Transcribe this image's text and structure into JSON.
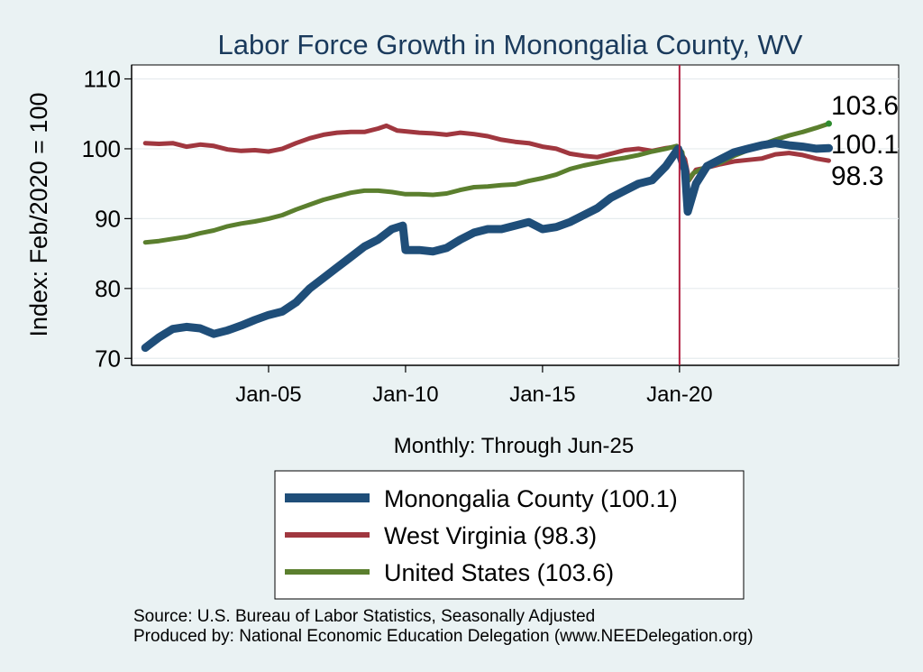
{
  "chart_data": {
    "type": "line",
    "title": "Labor Force Growth in Monongalia  County, WV",
    "ylabel": "Index: Feb/2020 = 100",
    "xlabel": "Monthly: Through Jun-25",
    "ylim": [
      69,
      112
    ],
    "yticks": [
      70,
      80,
      90,
      100,
      110
    ],
    "xrange": [
      2000.0,
      2028.0
    ],
    "xticks": [
      {
        "x": 2005.0,
        "label": "Jan-05"
      },
      {
        "x": 2010.0,
        "label": "Jan-10"
      },
      {
        "x": 2015.0,
        "label": "Jan-15"
      },
      {
        "x": 2020.0,
        "label": "Jan-20"
      }
    ],
    "reference_line_x": 2020.0,
    "grid": true,
    "series": [
      {
        "name": "Monongalia  County",
        "legend": "Monongalia  County (100.1)",
        "end_label": "100.1",
        "color": "#1f4e79",
        "points": [
          [
            2000.5,
            71.5
          ],
          [
            2001.0,
            73.0
          ],
          [
            2001.5,
            74.2
          ],
          [
            2002.0,
            74.5
          ],
          [
            2002.5,
            74.3
          ],
          [
            2003.0,
            73.5
          ],
          [
            2003.5,
            74.0
          ],
          [
            2004.0,
            74.7
          ],
          [
            2004.5,
            75.5
          ],
          [
            2005.0,
            76.2
          ],
          [
            2005.5,
            76.7
          ],
          [
            2006.0,
            78.0
          ],
          [
            2006.5,
            80.0
          ],
          [
            2007.0,
            81.5
          ],
          [
            2007.5,
            83.0
          ],
          [
            2008.0,
            84.5
          ],
          [
            2008.5,
            86.0
          ],
          [
            2009.0,
            87.0
          ],
          [
            2009.5,
            88.5
          ],
          [
            2009.9,
            89.0
          ],
          [
            2010.0,
            85.5
          ],
          [
            2010.5,
            85.5
          ],
          [
            2011.0,
            85.3
          ],
          [
            2011.5,
            85.8
          ],
          [
            2012.0,
            87.0
          ],
          [
            2012.5,
            88.0
          ],
          [
            2013.0,
            88.5
          ],
          [
            2013.5,
            88.5
          ],
          [
            2014.0,
            89.0
          ],
          [
            2014.5,
            89.5
          ],
          [
            2015.0,
            88.5
          ],
          [
            2015.5,
            88.8
          ],
          [
            2016.0,
            89.5
          ],
          [
            2016.5,
            90.5
          ],
          [
            2017.0,
            91.5
          ],
          [
            2017.5,
            93.0
          ],
          [
            2018.0,
            94.0
          ],
          [
            2018.5,
            95.0
          ],
          [
            2019.0,
            95.5
          ],
          [
            2019.5,
            97.5
          ],
          [
            2019.95,
            100.0
          ],
          [
            2020.2,
            97.0
          ],
          [
            2020.3,
            91.0
          ],
          [
            2020.6,
            95.0
          ],
          [
            2021.0,
            97.5
          ],
          [
            2021.5,
            98.5
          ],
          [
            2022.0,
            99.5
          ],
          [
            2022.5,
            100.0
          ],
          [
            2023.0,
            100.5
          ],
          [
            2023.5,
            100.8
          ],
          [
            2024.0,
            100.5
          ],
          [
            2024.5,
            100.3
          ],
          [
            2025.0,
            100.0
          ],
          [
            2025.45,
            100.1
          ]
        ]
      },
      {
        "name": "West Virginia",
        "legend": "West Virginia (98.3)",
        "end_label": "98.3",
        "color": "#a0373f",
        "points": [
          [
            2000.5,
            100.8
          ],
          [
            2001.0,
            100.7
          ],
          [
            2001.5,
            100.8
          ],
          [
            2002.0,
            100.3
          ],
          [
            2002.5,
            100.6
          ],
          [
            2003.0,
            100.4
          ],
          [
            2003.5,
            99.9
          ],
          [
            2004.0,
            99.7
          ],
          [
            2004.5,
            99.8
          ],
          [
            2005.0,
            99.6
          ],
          [
            2005.5,
            100.0
          ],
          [
            2006.0,
            100.8
          ],
          [
            2006.5,
            101.5
          ],
          [
            2007.0,
            102.0
          ],
          [
            2007.5,
            102.3
          ],
          [
            2008.0,
            102.4
          ],
          [
            2008.5,
            102.4
          ],
          [
            2009.0,
            102.9
          ],
          [
            2009.3,
            103.3
          ],
          [
            2009.7,
            102.6
          ],
          [
            2010.0,
            102.5
          ],
          [
            2010.5,
            102.3
          ],
          [
            2011.0,
            102.2
          ],
          [
            2011.5,
            102.0
          ],
          [
            2012.0,
            102.3
          ],
          [
            2012.5,
            102.1
          ],
          [
            2013.0,
            101.8
          ],
          [
            2013.5,
            101.3
          ],
          [
            2014.0,
            101.0
          ],
          [
            2014.5,
            100.8
          ],
          [
            2015.0,
            100.3
          ],
          [
            2015.5,
            100.0
          ],
          [
            2016.0,
            99.3
          ],
          [
            2016.5,
            99.0
          ],
          [
            2017.0,
            98.8
          ],
          [
            2017.5,
            99.3
          ],
          [
            2018.0,
            99.8
          ],
          [
            2018.5,
            100.0
          ],
          [
            2019.0,
            99.7
          ],
          [
            2019.5,
            100.1
          ],
          [
            2019.9,
            100.3
          ],
          [
            2020.2,
            98.5
          ],
          [
            2020.35,
            95.5
          ],
          [
            2020.6,
            97.0
          ],
          [
            2021.0,
            97.3
          ],
          [
            2021.5,
            97.8
          ],
          [
            2022.0,
            98.2
          ],
          [
            2022.5,
            98.4
          ],
          [
            2023.0,
            98.6
          ],
          [
            2023.5,
            99.2
          ],
          [
            2024.0,
            99.4
          ],
          [
            2024.5,
            99.1
          ],
          [
            2025.0,
            98.6
          ],
          [
            2025.45,
            98.3
          ]
        ]
      },
      {
        "name": "United States",
        "legend": "United States (103.6)",
        "end_label": "103.6",
        "color": "#5b7f2e",
        "points": [
          [
            2000.5,
            86.6
          ],
          [
            2001.0,
            86.8
          ],
          [
            2001.5,
            87.1
          ],
          [
            2002.0,
            87.4
          ],
          [
            2002.5,
            87.9
          ],
          [
            2003.0,
            88.3
          ],
          [
            2003.5,
            88.9
          ],
          [
            2004.0,
            89.3
          ],
          [
            2004.5,
            89.6
          ],
          [
            2005.0,
            90.0
          ],
          [
            2005.5,
            90.5
          ],
          [
            2006.0,
            91.3
          ],
          [
            2006.5,
            92.0
          ],
          [
            2007.0,
            92.7
          ],
          [
            2007.5,
            93.2
          ],
          [
            2008.0,
            93.7
          ],
          [
            2008.5,
            94.0
          ],
          [
            2009.0,
            94.0
          ],
          [
            2009.5,
            93.8
          ],
          [
            2010.0,
            93.5
          ],
          [
            2010.5,
            93.5
          ],
          [
            2011.0,
            93.4
          ],
          [
            2011.5,
            93.6
          ],
          [
            2012.0,
            94.1
          ],
          [
            2012.5,
            94.5
          ],
          [
            2013.0,
            94.6
          ],
          [
            2013.5,
            94.8
          ],
          [
            2014.0,
            94.9
          ],
          [
            2014.5,
            95.4
          ],
          [
            2015.0,
            95.8
          ],
          [
            2015.5,
            96.3
          ],
          [
            2016.0,
            97.1
          ],
          [
            2016.5,
            97.6
          ],
          [
            2017.0,
            98.0
          ],
          [
            2017.5,
            98.4
          ],
          [
            2018.0,
            98.7
          ],
          [
            2018.5,
            99.1
          ],
          [
            2019.0,
            99.6
          ],
          [
            2019.5,
            100.0
          ],
          [
            2019.9,
            100.4
          ],
          [
            2020.1,
            99.5
          ],
          [
            2020.25,
            95.0
          ],
          [
            2020.5,
            96.5
          ],
          [
            2021.0,
            97.5
          ],
          [
            2021.5,
            98.0
          ],
          [
            2022.0,
            99.0
          ],
          [
            2022.5,
            99.8
          ],
          [
            2023.0,
            100.6
          ],
          [
            2023.5,
            101.3
          ],
          [
            2024.0,
            101.9
          ],
          [
            2024.5,
            102.4
          ],
          [
            2025.0,
            103.0
          ],
          [
            2025.45,
            103.6
          ]
        ]
      }
    ]
  },
  "source_lines": [
    "Source: U.S. Bureau of Labor Statistics, Seasonally Adjusted",
    "Produced by: National Economic Education Delegation (www.NEEDelegation.org)"
  ]
}
